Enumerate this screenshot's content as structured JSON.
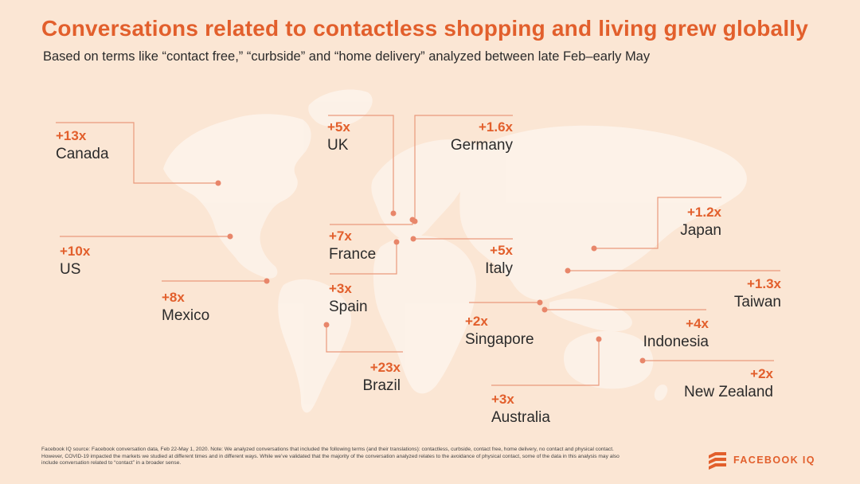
{
  "title": "Conversations related to contactless shopping and living grew globally",
  "subtitle": "Based on terms like “contact free,” “curbside” and “home delivery” analyzed between late Feb–early May",
  "callouts": [
    {
      "id": "canada",
      "multiplier": "+13x",
      "country": "Canada"
    },
    {
      "id": "us",
      "multiplier": "+10x",
      "country": "US"
    },
    {
      "id": "mexico",
      "multiplier": "+8x",
      "country": "Mexico"
    },
    {
      "id": "uk",
      "multiplier": "+5x",
      "country": "UK"
    },
    {
      "id": "france",
      "multiplier": "+7x",
      "country": "France"
    },
    {
      "id": "spain",
      "multiplier": "+3x",
      "country": "Spain"
    },
    {
      "id": "brazil",
      "multiplier": "+23x",
      "country": "Brazil"
    },
    {
      "id": "germany",
      "multiplier": "+1.6x",
      "country": "Germany"
    },
    {
      "id": "italy",
      "multiplier": "+5x",
      "country": "Italy"
    },
    {
      "id": "singapore",
      "multiplier": "+2x",
      "country": "Singapore"
    },
    {
      "id": "australia",
      "multiplier": "+3x",
      "country": "Australia"
    },
    {
      "id": "japan",
      "multiplier": "+1.2x",
      "country": "Japan"
    },
    {
      "id": "taiwan",
      "multiplier": "+1.3x",
      "country": "Taiwan"
    },
    {
      "id": "indonesia",
      "multiplier": "+4x",
      "country": "Indonesia"
    },
    {
      "id": "new_zealand",
      "multiplier": "+2x",
      "country": "New Zealand"
    }
  ],
  "footnote": "Facebook IQ source: Facebook conversation data, Feb 22-May 1, 2020. Note: We analyzed conversations that included the following terms (and their translations): contactless, curbside, contact free, home delivery, no contact and physical contact. However, COVID-19 impacted the markets we studied at different times and in different ways. While we’ve validated that the majority of the conversation analyzed relates to the avoidance of physical contact, some of the data in this analysis may also include conversation related to “contact” in a broader sense.",
  "brand": {
    "name": "FACEBOOK IQ",
    "icon": "facebook-iq-logo-icon"
  },
  "colors": {
    "background": "#fbe6d4",
    "accent": "#e25f2c",
    "land": "#fdf3ea",
    "line": "#ea9a7c",
    "dot": "#e8866a"
  }
}
